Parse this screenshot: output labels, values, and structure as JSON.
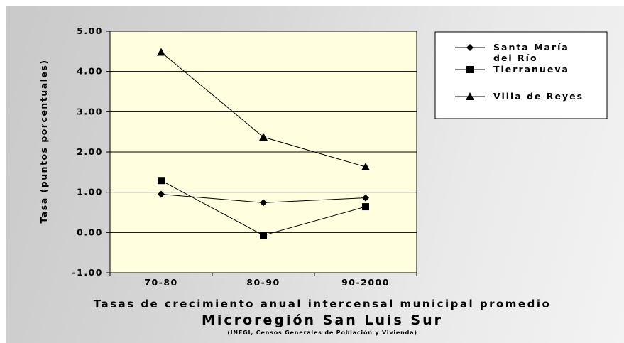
{
  "chart_data": {
    "type": "line",
    "categories": [
      "70-80",
      "80-90",
      "90-2000"
    ],
    "series": [
      {
        "name": "Santa María del Río",
        "name_lines": [
          "Santa María",
          "del Río"
        ],
        "marker": "diamond",
        "values": [
          0.95,
          0.74,
          0.86
        ]
      },
      {
        "name": "Tierranueva",
        "name_lines": [
          "Tierranueva"
        ],
        "marker": "square",
        "values": [
          1.29,
          -0.07,
          0.64
        ]
      },
      {
        "name": "Villa de Reyes",
        "name_lines": [
          "Villa de Reyes"
        ],
        "marker": "triangle",
        "values": [
          4.48,
          2.37,
          1.63
        ]
      }
    ],
    "ylabel": "Tasa (puntos porcentuales)",
    "xlabel": "Tasas de crecimiento anual intercensal municipal promedio",
    "title": "Microregión San Luis Sur",
    "subtitle": "(INEGI, Censos Generales de Población y Vivienda)",
    "ylim": [
      -1,
      5
    ],
    "yticks": [
      -1,
      0,
      1,
      2,
      3,
      4,
      5
    ],
    "ytick_labels": [
      "-1.00",
      "0.00",
      "1.00",
      "2.00",
      "3.00",
      "4.00",
      "5.00"
    ],
    "grid": true,
    "legend_position": "top-right",
    "colors": {
      "plot_bg": "#ffffe0",
      "line": "#000000",
      "frame_bg": "#d9d9d9"
    }
  }
}
